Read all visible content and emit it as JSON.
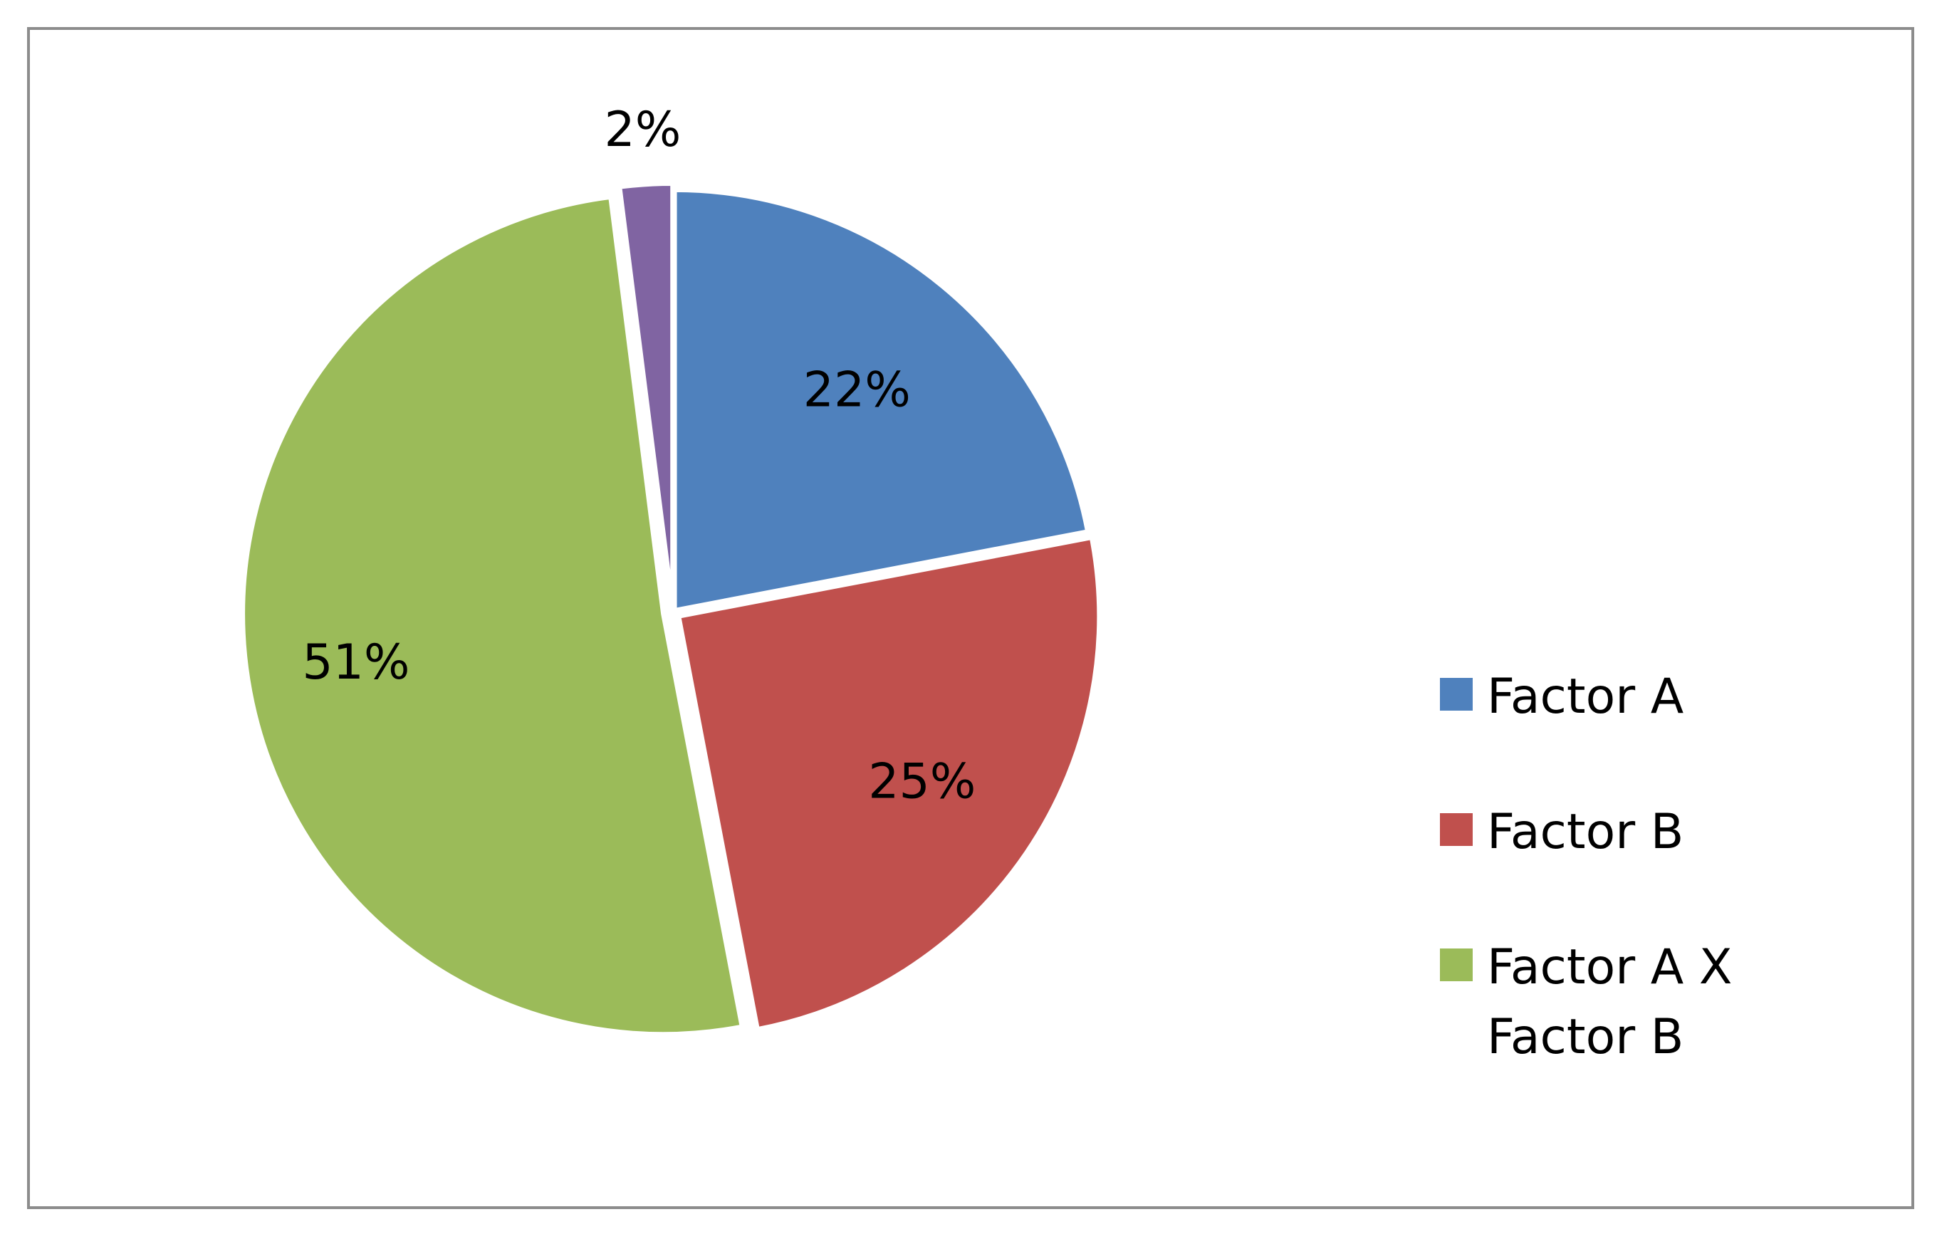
{
  "chart_data": {
    "type": "pie",
    "slices": [
      {
        "name": "Factor A",
        "value": 22,
        "label": "22%",
        "color": "#4F81BD",
        "in_legend": true
      },
      {
        "name": "Factor B",
        "value": 25,
        "label": "25%",
        "color": "#C0504D",
        "in_legend": true
      },
      {
        "name": "Factor A X Factor B",
        "value": 51,
        "label": "51%",
        "color": "#9BBB59",
        "in_legend": true
      },
      {
        "name": "",
        "value": 2,
        "label": "2%",
        "color": "#8064A2",
        "in_legend": false
      }
    ],
    "legend": {
      "position": "right",
      "entries": [
        "Factor A",
        "Factor B",
        "Factor A X Factor B"
      ]
    },
    "start_angle": "12 o'clock",
    "direction": "clockwise",
    "exploded": true,
    "title": "",
    "xlabel": "",
    "ylabel": ""
  }
}
